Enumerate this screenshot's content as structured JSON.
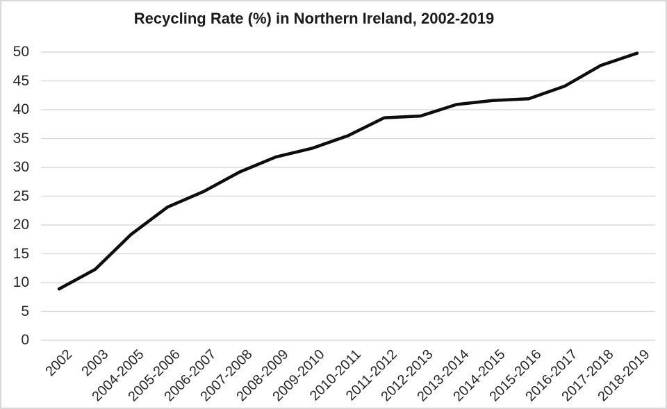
{
  "window": {
    "background": "#ffffff",
    "border_color": "#d9d9d9"
  },
  "chart_data": {
    "type": "line",
    "title": "Recycling Rate (%) in Northern Ireland, 2002-2019",
    "categories": [
      "2002",
      "2003",
      "2004-2005",
      "2005-2006",
      "2006-2007",
      "2007-2008",
      "2008-2009",
      "2009-2010",
      "2010-2011",
      "2011-2012",
      "2012-2013",
      "2013-2014",
      "2014-2015",
      "2015-2016",
      "2016-2017",
      "2017-2018",
      "2018-2019"
    ],
    "series": [
      {
        "name": "Recycling Rate (%)",
        "values": [
          8.9,
          12.3,
          18.4,
          23.1,
          25.8,
          29.2,
          31.8,
          33.3,
          35.5,
          38.6,
          38.9,
          40.9,
          41.6,
          41.9,
          44.1,
          47.7,
          49.8
        ],
        "color": "#0d0d0d"
      }
    ],
    "xlabel": "",
    "ylabel": "",
    "ylim": [
      0,
      50
    ],
    "yticks": [
      0,
      5,
      10,
      15,
      20,
      25,
      30,
      35,
      40,
      45,
      50
    ],
    "grid": "horizontal-only",
    "gridline_color": "#d9d9d9",
    "legend": "none",
    "x_tick_rotation_deg": 45,
    "line_width": 4.5,
    "text_color": "#262626",
    "title_color": "#1a1a1a"
  }
}
